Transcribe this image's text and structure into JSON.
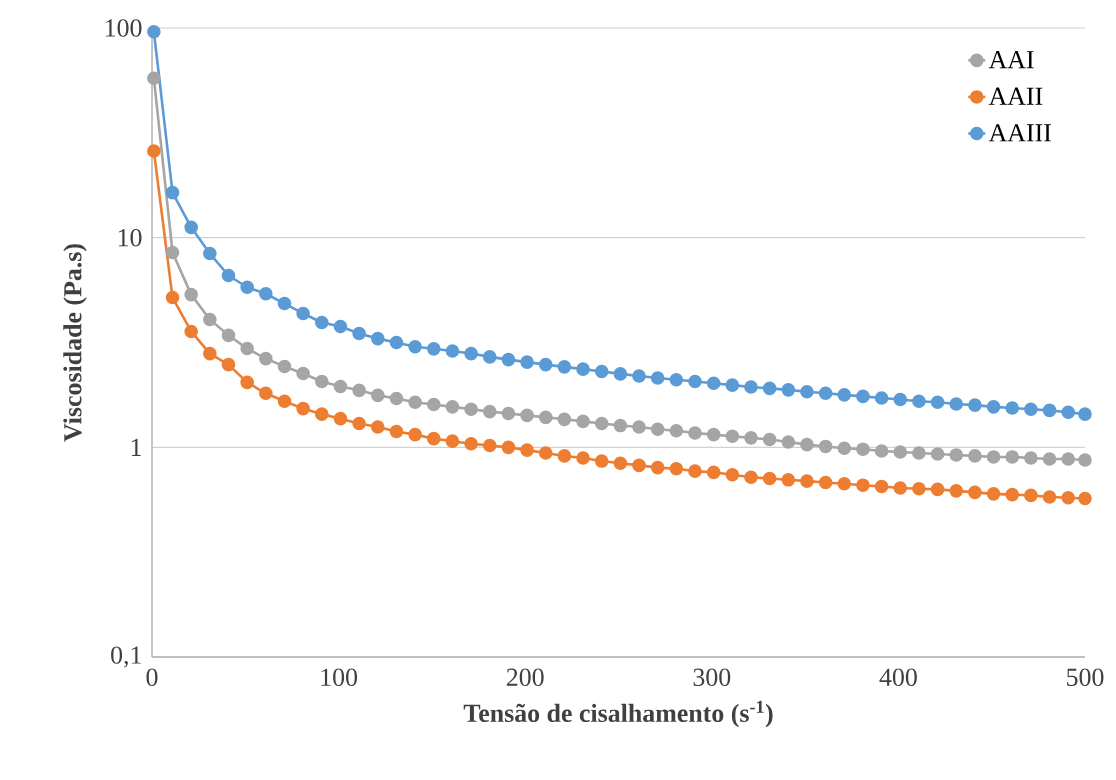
{
  "chart_data": {
    "type": "line",
    "xlabel": "Tensão de cisalhamento (s$^{-1}$)",
    "ylabel": "Viscosidade (Pa.s)",
    "x": [
      1,
      11,
      21,
      31,
      41,
      51,
      61,
      71,
      81,
      91,
      101,
      111,
      121,
      131,
      141,
      151,
      161,
      171,
      181,
      191,
      201,
      211,
      221,
      231,
      241,
      251,
      261,
      271,
      281,
      291,
      301,
      311,
      321,
      331,
      341,
      351,
      361,
      371,
      381,
      391,
      401,
      411,
      421,
      431,
      441,
      451,
      461,
      471,
      481,
      491,
      500
    ],
    "series": [
      {
        "name": "AAI",
        "color": "#a5a5a5",
        "values": [
          57.6,
          8.5,
          5.35,
          4.07,
          3.42,
          2.96,
          2.65,
          2.43,
          2.25,
          2.06,
          1.95,
          1.87,
          1.77,
          1.71,
          1.64,
          1.6,
          1.56,
          1.52,
          1.48,
          1.45,
          1.42,
          1.39,
          1.36,
          1.33,
          1.3,
          1.27,
          1.25,
          1.22,
          1.2,
          1.17,
          1.15,
          1.13,
          1.11,
          1.09,
          1.06,
          1.03,
          1.01,
          0.99,
          0.98,
          0.96,
          0.95,
          0.94,
          0.93,
          0.92,
          0.91,
          0.9,
          0.9,
          0.89,
          0.88,
          0.88,
          0.87
        ]
      },
      {
        "name": "AAII",
        "color": "#ed7d31",
        "values": [
          25.9,
          5.18,
          3.57,
          2.8,
          2.48,
          2.04,
          1.81,
          1.66,
          1.53,
          1.44,
          1.37,
          1.3,
          1.25,
          1.19,
          1.15,
          1.1,
          1.07,
          1.04,
          1.02,
          1.0,
          0.97,
          0.94,
          0.91,
          0.89,
          0.86,
          0.84,
          0.82,
          0.8,
          0.79,
          0.77,
          0.76,
          0.74,
          0.72,
          0.71,
          0.7,
          0.69,
          0.68,
          0.67,
          0.66,
          0.65,
          0.64,
          0.635,
          0.63,
          0.62,
          0.61,
          0.6,
          0.595,
          0.59,
          0.58,
          0.575,
          0.57
        ]
      },
      {
        "name": "AAIII",
        "color": "#5b9bd5",
        "values": [
          96,
          16.4,
          11.2,
          8.4,
          6.6,
          5.8,
          5.4,
          4.85,
          4.35,
          3.94,
          3.77,
          3.49,
          3.3,
          3.16,
          3.02,
          2.95,
          2.88,
          2.8,
          2.7,
          2.62,
          2.55,
          2.48,
          2.42,
          2.36,
          2.3,
          2.24,
          2.19,
          2.14,
          2.1,
          2.06,
          2.02,
          1.98,
          1.94,
          1.91,
          1.88,
          1.84,
          1.81,
          1.78,
          1.75,
          1.72,
          1.69,
          1.66,
          1.64,
          1.61,
          1.59,
          1.56,
          1.54,
          1.52,
          1.5,
          1.47,
          1.44
        ]
      }
    ],
    "xlim": [
      0,
      500
    ],
    "xticks": [
      0,
      100,
      200,
      300,
      400,
      500
    ],
    "ylim": [
      0.1,
      100
    ],
    "yticks": [
      {
        "value": 0.1,
        "label": "0,1"
      },
      1,
      10,
      100
    ],
    "log": "y",
    "grid": "y",
    "legend": "top right",
    "marker": "circle",
    "line_style": "solid"
  }
}
